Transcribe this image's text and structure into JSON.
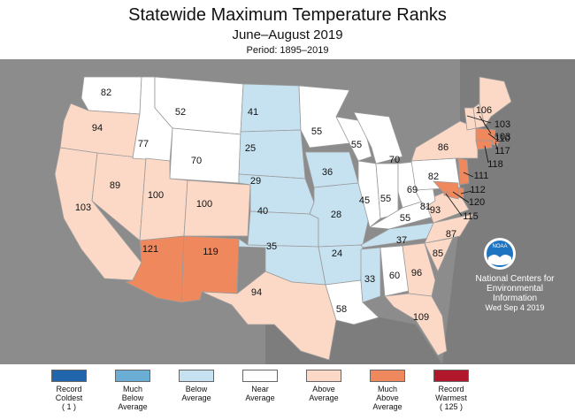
{
  "title": "Statewide Maximum Temperature Ranks",
  "subtitle": "June–August 2019",
  "period": "Period: 1895–2019",
  "credit": {
    "line1": "National Centers for",
    "line2": "Environmental",
    "line3": "Information",
    "date": "Wed Sep  4 2019",
    "logo_text": "NOAA",
    "logo_icon": "noaa-seagull-logo"
  },
  "colors": {
    "record_coldest": "#2166ac",
    "much_below": "#6aaed6",
    "below": "#c6e2f0",
    "near": "#ffffff",
    "above": "#fbd9c6",
    "much_above": "#f0885e",
    "record_warmest": "#b2182b",
    "background": "#8c8c8c"
  },
  "legend": [
    {
      "lines": [
        "Record",
        "Coldest",
        "( 1 )"
      ],
      "color": "#2166ac"
    },
    {
      "lines": [
        "Much",
        "Below",
        "Average"
      ],
      "color": "#6aaed6"
    },
    {
      "lines": [
        "Below",
        "Average"
      ],
      "color": "#c6e2f0"
    },
    {
      "lines": [
        "Near",
        "Average"
      ],
      "color": "#ffffff"
    },
    {
      "lines": [
        "Above",
        "Average"
      ],
      "color": "#fbd9c6"
    },
    {
      "lines": [
        "Much",
        "Above",
        "Average"
      ],
      "color": "#f0885e"
    },
    {
      "lines": [
        "Record",
        "Warmest",
        "( 125 )"
      ],
      "color": "#b2182b"
    }
  ],
  "states": [
    {
      "state": "WA",
      "rank": "82",
      "category": "near"
    },
    {
      "state": "OR",
      "rank": "94",
      "category": "above"
    },
    {
      "state": "CA",
      "rank": "103",
      "category": "above"
    },
    {
      "state": "NV",
      "rank": "89",
      "category": "above"
    },
    {
      "state": "ID",
      "rank": "77",
      "category": "near"
    },
    {
      "state": "MT",
      "rank": "52",
      "category": "near"
    },
    {
      "state": "WY",
      "rank": "70",
      "category": "near"
    },
    {
      "state": "UT",
      "rank": "100",
      "category": "above"
    },
    {
      "state": "CO",
      "rank": "100",
      "category": "above"
    },
    {
      "state": "AZ",
      "rank": "121",
      "category": "much_above"
    },
    {
      "state": "NM",
      "rank": "119",
      "category": "much_above"
    },
    {
      "state": "ND",
      "rank": "41",
      "category": "below"
    },
    {
      "state": "SD",
      "rank": "25",
      "category": "below"
    },
    {
      "state": "NE",
      "rank": "29",
      "category": "below"
    },
    {
      "state": "KS",
      "rank": "40",
      "category": "below"
    },
    {
      "state": "OK",
      "rank": "35",
      "category": "below"
    },
    {
      "state": "TX",
      "rank": "94",
      "category": "above"
    },
    {
      "state": "MN",
      "rank": "55",
      "category": "near"
    },
    {
      "state": "IA",
      "rank": "36",
      "category": "below"
    },
    {
      "state": "MO",
      "rank": "28",
      "category": "below"
    },
    {
      "state": "AR",
      "rank": "24",
      "category": "below"
    },
    {
      "state": "LA",
      "rank": "58",
      "category": "near"
    },
    {
      "state": "WI",
      "rank": "55",
      "category": "near"
    },
    {
      "state": "MI",
      "rank": "70",
      "category": "near"
    },
    {
      "state": "IL",
      "rank": "45",
      "category": "near"
    },
    {
      "state": "IN",
      "rank": "55",
      "category": "near"
    },
    {
      "state": "OH",
      "rank": "69",
      "category": "near"
    },
    {
      "state": "KY",
      "rank": "55",
      "category": "near"
    },
    {
      "state": "TN",
      "rank": "37",
      "category": "below"
    },
    {
      "state": "MS",
      "rank": "33",
      "category": "below"
    },
    {
      "state": "AL",
      "rank": "60",
      "category": "near"
    },
    {
      "state": "GA",
      "rank": "96",
      "category": "above"
    },
    {
      "state": "FL",
      "rank": "109",
      "category": "above"
    },
    {
      "state": "SC",
      "rank": "85",
      "category": "above"
    },
    {
      "state": "NC",
      "rank": "87",
      "category": "above"
    },
    {
      "state": "VA",
      "rank": "93",
      "category": "above"
    },
    {
      "state": "WV",
      "rank": "81",
      "category": "near"
    },
    {
      "state": "PA",
      "rank": "82",
      "category": "near"
    },
    {
      "state": "NY",
      "rank": "86",
      "category": "above"
    },
    {
      "state": "ME",
      "rank": "106",
      "category": "above"
    },
    {
      "state": "NH",
      "rank": "103",
      "category": "above"
    },
    {
      "state": "VT",
      "rank": "103",
      "category": "above"
    },
    {
      "state": "MA",
      "rank": "110",
      "category": "much_above"
    },
    {
      "state": "RI",
      "rank": "117",
      "category": "much_above"
    },
    {
      "state": "CT",
      "rank": "118",
      "category": "much_above"
    },
    {
      "state": "NJ",
      "rank": "111",
      "category": "much_above"
    },
    {
      "state": "DE",
      "rank": "112",
      "category": "much_above"
    },
    {
      "state": "MD",
      "rank": "120",
      "category": "much_above"
    },
    {
      "state": "DC",
      "rank": "115",
      "category": "much_above"
    }
  ]
}
